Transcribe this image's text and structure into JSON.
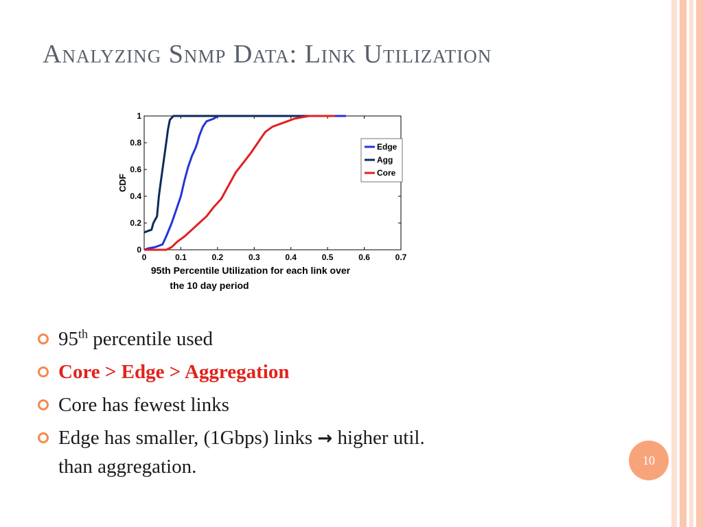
{
  "slide": {
    "title": "Analyzing Snmp Data: Link Utilization",
    "page_number": "10"
  },
  "bullets": [
    {
      "text": "95",
      "sup": "th",
      "rest": " percentile used"
    },
    {
      "text": "Core > Edge > Aggregation"
    },
    {
      "text": "Core has fewest links"
    },
    {
      "text": "Edge has smaller, (1Gbps) links ",
      "arrow": "→",
      "rest": " higher util.",
      "continuation": "than aggregation."
    }
  ],
  "colors": {
    "accent_text": "#e0231b",
    "bullet": "#f58a4b",
    "page_badge": "#f7a47a",
    "edge": "#2335d8",
    "agg": "#0d2a5c",
    "core": "#e02020"
  },
  "chart_data": {
    "type": "line",
    "title": "",
    "xlabel": "95th Percentile Utilization for each link over the 10 day period",
    "ylabel": "CDF",
    "xlim": [
      0,
      0.7
    ],
    "ylim": [
      0,
      1
    ],
    "xticks": [
      "0",
      "0.1",
      "0.2",
      "0.3",
      "0.4",
      "0.5",
      "0.6",
      "0.7"
    ],
    "yticks": [
      "0",
      "0.2",
      "0.4",
      "0.6",
      "0.8",
      "1"
    ],
    "grid": false,
    "legend_position": "top-right",
    "series": [
      {
        "name": "Edge",
        "color": "#2335d8",
        "points": [
          [
            0,
            0
          ],
          [
            0.01,
            0.01
          ],
          [
            0.03,
            0.02
          ],
          [
            0.05,
            0.04
          ],
          [
            0.06,
            0.1
          ],
          [
            0.075,
            0.2
          ],
          [
            0.09,
            0.32
          ],
          [
            0.1,
            0.4
          ],
          [
            0.11,
            0.52
          ],
          [
            0.12,
            0.62
          ],
          [
            0.13,
            0.7
          ],
          [
            0.14,
            0.76
          ],
          [
            0.145,
            0.8
          ],
          [
            0.15,
            0.85
          ],
          [
            0.16,
            0.92
          ],
          [
            0.17,
            0.96
          ],
          [
            0.19,
            0.98
          ],
          [
            0.2,
            1
          ],
          [
            0.55,
            1
          ]
        ]
      },
      {
        "name": "Agg",
        "color": "#0d2a5c",
        "points": [
          [
            0,
            0.13
          ],
          [
            0.01,
            0.14
          ],
          [
            0.02,
            0.15
          ],
          [
            0.025,
            0.2
          ],
          [
            0.035,
            0.25
          ],
          [
            0.04,
            0.4
          ],
          [
            0.045,
            0.5
          ],
          [
            0.05,
            0.6
          ],
          [
            0.055,
            0.7
          ],
          [
            0.06,
            0.8
          ],
          [
            0.065,
            0.9
          ],
          [
            0.07,
            0.97
          ],
          [
            0.08,
            1
          ],
          [
            0.5,
            1
          ]
        ]
      },
      {
        "name": "Core",
        "color": "#e02020",
        "points": [
          [
            0,
            0
          ],
          [
            0.06,
            0
          ],
          [
            0.075,
            0.02
          ],
          [
            0.09,
            0.06
          ],
          [
            0.11,
            0.1
          ],
          [
            0.13,
            0.15
          ],
          [
            0.15,
            0.2
          ],
          [
            0.17,
            0.25
          ],
          [
            0.19,
            0.32
          ],
          [
            0.21,
            0.38
          ],
          [
            0.23,
            0.48
          ],
          [
            0.25,
            0.58
          ],
          [
            0.27,
            0.65
          ],
          [
            0.29,
            0.72
          ],
          [
            0.31,
            0.8
          ],
          [
            0.33,
            0.88
          ],
          [
            0.35,
            0.92
          ],
          [
            0.37,
            0.94
          ],
          [
            0.39,
            0.96
          ],
          [
            0.41,
            0.98
          ],
          [
            0.43,
            0.99
          ],
          [
            0.45,
            1
          ],
          [
            0.52,
            1
          ]
        ]
      }
    ]
  }
}
